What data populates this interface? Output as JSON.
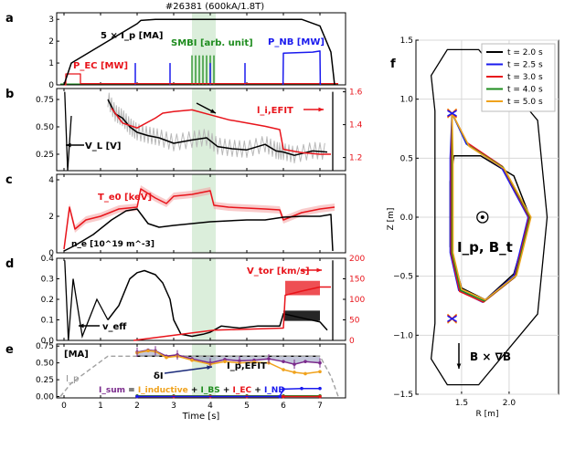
{
  "figure_title": "#26381 (600kA/1.8T)",
  "colors": {
    "black": "#000000",
    "red": "#e8141b",
    "blue": "#1a1aee",
    "green": "#1e8c1e",
    "gray": "#a0a0a0",
    "purple": "#7a2a8c",
    "orange": "#f0a21c",
    "band": "#cfe8cf"
  },
  "chart_data": [
    {
      "panel": "a",
      "type": "line",
      "xlim": [
        -0.2,
        7.7
      ],
      "ylim": [
        0,
        3.3
      ],
      "yticks": [
        "0",
        "1",
        "2",
        "3"
      ],
      "labels": {
        "ip": "5 × I_p [MA]",
        "pec": "P_EC [MW]",
        "smbi": "SMBI [arb. unit]",
        "pnb": "P_NB [MW]"
      },
      "series": [
        {
          "name": "5 × Ip [MA]",
          "color": "black",
          "x": [
            0,
            0.2,
            1.2,
            2.0,
            2.1,
            2.5,
            6.5,
            7.0,
            7.3,
            7.4
          ],
          "y": [
            0,
            1.0,
            2.0,
            2.8,
            2.95,
            3.0,
            3.0,
            2.7,
            1.5,
            0
          ]
        },
        {
          "name": "P_EC [MW]",
          "color": "red",
          "x": [
            0,
            0.05,
            0.05,
            0.45,
            0.45,
            7.5
          ],
          "y": [
            0,
            0,
            0.5,
            0.5,
            0.06,
            0.06
          ]
        },
        {
          "name": "P_NB [MW]",
          "color": "blue",
          "x": [
            5.99,
            6.0,
            6.8,
            7.0,
            7.01
          ],
          "y": [
            0,
            1.45,
            1.5,
            1.55,
            0
          ]
        }
      ],
      "blips_blue": [
        1.95,
        2.9,
        4.0,
        4.95
      ],
      "smbi_pulses": [
        3.5,
        3.6,
        3.7,
        3.8,
        3.9,
        4.0,
        4.1
      ]
    },
    {
      "panel": "b",
      "type": "line",
      "xlim": [
        -0.2,
        7.7
      ],
      "ylim_left": [
        0.1,
        0.85
      ],
      "ylim_right": [
        1.12,
        1.62
      ],
      "yticks_left": [
        "0.25",
        "0.50",
        "0.75"
      ],
      "yticks_right": [
        "1.2",
        "1.4",
        "1.6"
      ],
      "labels": {
        "vl": "V_L [V]",
        "lefit": "l_i,EFIT"
      },
      "series": [
        {
          "name": "V_L [V]",
          "color": "black",
          "x": [
            1.2,
            1.4,
            1.6,
            1.8,
            2.0,
            2.3,
            2.6,
            3.0,
            3.5,
            3.9,
            4.2,
            4.6,
            5.0,
            5.5,
            5.8,
            6.0,
            6.3,
            6.8,
            7.2
          ],
          "y": [
            0.75,
            0.62,
            0.58,
            0.5,
            0.45,
            0.42,
            0.4,
            0.35,
            0.38,
            0.4,
            0.32,
            0.3,
            0.29,
            0.34,
            0.28,
            0.27,
            0.24,
            0.28,
            0.27
          ]
        },
        {
          "name": "l_i,EFIT",
          "color": "red",
          "x": [
            1.3,
            1.6,
            2.0,
            2.5,
            2.7,
            3.0,
            3.5,
            4.0,
            4.5,
            5.0,
            5.5,
            5.9,
            6.0,
            6.5,
            7.0,
            7.3
          ],
          "y": [
            1.5,
            1.41,
            1.38,
            1.44,
            1.47,
            1.48,
            1.49,
            1.46,
            1.43,
            1.41,
            1.39,
            1.37,
            1.25,
            1.23,
            1.22,
            1.22
          ]
        }
      ]
    },
    {
      "panel": "c",
      "type": "line",
      "xlim": [
        -0.2,
        7.7
      ],
      "ylim": [
        0,
        4.3
      ],
      "yticks": [
        "0",
        "2",
        "4"
      ],
      "labels": {
        "te": "T_e0 [keV]",
        "ne": "n_e [10^19 m^-3]"
      },
      "series": [
        {
          "name": "T_e0 [keV]",
          "color": "red",
          "x": [
            0,
            0.15,
            0.3,
            0.6,
            1.0,
            1.5,
            2.0,
            2.1,
            2.5,
            2.8,
            3.0,
            3.5,
            4.0,
            4.1,
            4.5,
            5.0,
            5.5,
            5.9,
            6.0,
            6.5,
            7.0,
            7.4
          ],
          "y": [
            0.2,
            2.5,
            1.3,
            1.8,
            2.0,
            2.4,
            2.5,
            3.5,
            3.0,
            2.7,
            3.1,
            3.2,
            3.4,
            2.6,
            2.5,
            2.45,
            2.4,
            2.35,
            1.8,
            2.2,
            2.4,
            2.5
          ]
        },
        {
          "name": "n_e [10^19 m^-3]",
          "color": "black",
          "x": [
            0,
            0.3,
            0.8,
            1.3,
            1.7,
            2.0,
            2.3,
            2.6,
            3.0,
            3.5,
            4.0,
            4.5,
            5.0,
            5.5,
            6.0,
            6.5,
            7.0,
            7.3,
            7.35
          ],
          "y": [
            0.1,
            0.4,
            1.0,
            1.8,
            2.3,
            2.4,
            1.6,
            1.4,
            1.5,
            1.6,
            1.7,
            1.75,
            1.8,
            1.8,
            1.95,
            2.0,
            2.0,
            2.1,
            0.1
          ]
        }
      ]
    },
    {
      "panel": "d",
      "type": "line",
      "xlim": [
        -0.2,
        7.7
      ],
      "ylim_left": [
        0,
        0.4
      ],
      "ylim_right": [
        0,
        200
      ],
      "yticks_left": [
        "0.0",
        "0.1",
        "0.2",
        "0.3",
        "0.4"
      ],
      "yticks_right": [
        "0",
        "50",
        "100",
        "150",
        "200"
      ],
      "labels": {
        "vtor": "V_tor [km/s]",
        "veff": "v_eff"
      },
      "series": [
        {
          "name": "v_eff",
          "color": "black",
          "x": [
            1.2,
            1.5,
            1.8,
            2.0,
            2.2,
            2.5,
            2.7,
            2.9,
            3.0,
            3.2,
            3.5,
            3.8,
            4.0,
            4.3,
            4.8,
            5.3,
            5.9,
            6.0,
            6.5,
            7.0,
            7.2
          ],
          "y": [
            0.1,
            0.17,
            0.3,
            0.33,
            0.34,
            0.32,
            0.28,
            0.2,
            0.1,
            0.03,
            0.02,
            0.03,
            0.04,
            0.07,
            0.06,
            0.07,
            0.07,
            0.13,
            0.11,
            0.09,
            0.05
          ]
        },
        {
          "name": "V_tor [km/s]",
          "color": "red",
          "x": [
            1.9,
            4.1,
            6.0,
            6.05,
            6.5,
            7.0,
            7.3
          ],
          "y": [
            0,
            25,
            30,
            110,
            120,
            130,
            130
          ]
        }
      ]
    },
    {
      "panel": "e",
      "type": "line",
      "xlim": [
        -0.2,
        7.7
      ],
      "ylim": [
        -0.02,
        0.78
      ],
      "yticks": [
        "0.00",
        "0.25",
        "0.50",
        "0.75"
      ],
      "labels": {
        "unit": "[MA]",
        "ip_label": "I_p",
        "efit": "I_p,EFIT",
        "dI": "δI",
        "eq_sum": "I_sum",
        "eq_eq": " = ",
        "eq_ind": "I_inductive",
        "eq_plus1": " + ",
        "eq_bs": "I_BS",
        "eq_plus2": " + ",
        "eq_ec": "I_EC",
        "eq_plus3": " + ",
        "eq_nb": "I_NB",
        "xlabel": "Time [s]"
      },
      "xticks": [
        "0",
        "1",
        "2",
        "3",
        "4",
        "5",
        "6",
        "7"
      ],
      "series": [
        {
          "name": "I_p (dashed)",
          "color": "gray",
          "x": [
            -0.1,
            0.2,
            1.2,
            2.0,
            7.0,
            7.3,
            7.5
          ],
          "y": [
            0,
            0.2,
            0.6,
            0.6,
            0.6,
            0.3,
            0
          ]
        },
        {
          "name": "I_sum",
          "color": "purple",
          "x": [
            2.0,
            2.3,
            2.5,
            2.8,
            3.1,
            3.5,
            4.0,
            4.4,
            4.8,
            5.2,
            5.6,
            6.0,
            6.3,
            6.6,
            7.0
          ],
          "y": [
            0.66,
            0.69,
            0.68,
            0.6,
            0.62,
            0.56,
            0.5,
            0.55,
            0.53,
            0.54,
            0.56,
            0.52,
            0.48,
            0.52,
            0.5
          ]
        },
        {
          "name": "I_inductive",
          "color": "orange",
          "x": [
            2.0,
            2.3,
            2.5,
            2.8,
            3.1,
            3.5,
            4.0,
            4.4,
            4.8,
            5.2,
            5.6,
            6.0,
            6.3,
            6.6,
            7.0
          ],
          "y": [
            0.65,
            0.68,
            0.67,
            0.58,
            0.6,
            0.54,
            0.48,
            0.52,
            0.5,
            0.51,
            0.5,
            0.4,
            0.36,
            0.34,
            0.37
          ]
        },
        {
          "name": "I_BS",
          "color": "green",
          "x": [
            2.0,
            3.0,
            4.0,
            5.0,
            6.0,
            7.0
          ],
          "y": [
            0.01,
            0.01,
            0.01,
            0.01,
            0.01,
            0.01
          ]
        },
        {
          "name": "I_EC",
          "color": "red",
          "x": [
            2.0,
            3.0,
            4.0,
            5.0,
            6.0,
            7.0
          ],
          "y": [
            0.0,
            0.0,
            0.0,
            0.0,
            0.0,
            0.0
          ]
        },
        {
          "name": "I_NB",
          "color": "blue",
          "x": [
            2.0,
            5.9,
            6.0,
            6.5,
            7.0
          ],
          "y": [
            0.0,
            0.0,
            0.11,
            0.12,
            0.12
          ]
        }
      ]
    },
    {
      "panel": "f",
      "type": "line",
      "xlim": [
        1.02,
        2.52
      ],
      "ylim": [
        -1.5,
        1.5
      ],
      "xticks": [
        "1.5",
        "2.0"
      ],
      "yticks": [
        "−1.5",
        "−1.0",
        "−0.5",
        "0.0",
        "0.5",
        "1.0",
        "1.5"
      ],
      "xlabel": "R [m]",
      "ylabel": "Z [m]",
      "labels": {
        "current": "I_p, B_t",
        "drift": "B × ∇B"
      },
      "legend": [
        "t = 2.0 s",
        "t = 2.5 s",
        "t = 3.0 s",
        "t = 4.0 s",
        "t = 5.0 s"
      ],
      "legend_colors": [
        "black",
        "blue",
        "red",
        "green",
        "orange"
      ],
      "x_points_upper": [
        1.4,
        0.88
      ],
      "x_points_lower": [
        1.4,
        -0.86
      ]
    }
  ]
}
